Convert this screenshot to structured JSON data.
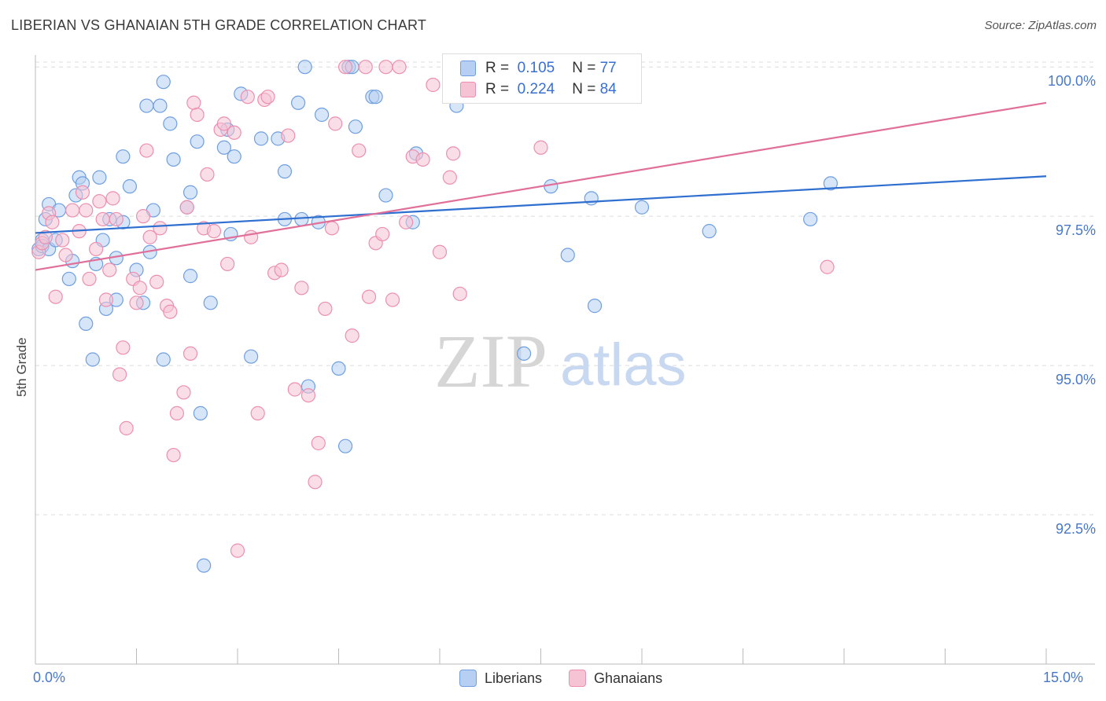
{
  "header": {
    "title": "LIBERIAN VS GHANAIAN 5TH GRADE CORRELATION CHART",
    "source": "Source: ZipAtlas.com"
  },
  "watermark": {
    "zip": "ZIP",
    "atlas": "atlas"
  },
  "legend": {
    "r_label": "R =",
    "n_label": "N =",
    "liberians": {
      "r": "0.105",
      "n": "77"
    },
    "ghanaians": {
      "r": "0.224",
      "n": "84"
    }
  },
  "colors": {
    "blue": "#6f9fe0",
    "blue_fill": "#b7cff2",
    "blue_line": "#2f6fd0",
    "pink": "#ec8fb0",
    "pink_fill": "#f6c3d4",
    "pink_line": "#e0709a",
    "axis_text": "#4a78c8",
    "grid": "#dcdcdc"
  },
  "chart_data": {
    "type": "scatter",
    "title": "LIBERIAN VS GHANAIAN 5TH GRADE CORRELATION CHART",
    "xlabel": "",
    "ylabel": "5th Grade",
    "xlim": [
      0,
      15
    ],
    "ylim": [
      90.0,
      100.2
    ],
    "x_tick_labels": [
      "0.0%",
      "15.0%"
    ],
    "y_ticks": [
      92.5,
      95.0,
      97.5,
      100.0
    ],
    "y_tick_labels": [
      "92.5%",
      "95.0%",
      "97.5%",
      "100.0%"
    ],
    "grid": true,
    "legend_position": "top-center",
    "series": [
      {
        "name": "Liberians",
        "color": "#6f9fe0",
        "trend": {
          "x": [
            0,
            15
          ],
          "y": [
            97.22,
            98.17
          ]
        },
        "points": [
          [
            0.05,
            96.95
          ],
          [
            0.1,
            97.1
          ],
          [
            0.1,
            97.0
          ],
          [
            0.15,
            97.45
          ],
          [
            0.2,
            96.95
          ],
          [
            0.2,
            97.7
          ],
          [
            0.3,
            97.1
          ],
          [
            0.35,
            97.6
          ],
          [
            0.5,
            96.45
          ],
          [
            0.55,
            96.75
          ],
          [
            0.6,
            97.85
          ],
          [
            0.65,
            98.15
          ],
          [
            0.7,
            98.05
          ],
          [
            0.75,
            95.7
          ],
          [
            0.85,
            95.1
          ],
          [
            0.9,
            96.7
          ],
          [
            0.95,
            98.15
          ],
          [
            1.0,
            97.1
          ],
          [
            1.05,
            95.95
          ],
          [
            1.1,
            97.45
          ],
          [
            1.2,
            96.1
          ],
          [
            1.2,
            96.8
          ],
          [
            1.3,
            97.4
          ],
          [
            1.3,
            98.5
          ],
          [
            1.4,
            98.0
          ],
          [
            1.5,
            96.6
          ],
          [
            1.6,
            96.05
          ],
          [
            1.65,
            99.35
          ],
          [
            1.7,
            96.9
          ],
          [
            1.75,
            97.6
          ],
          [
            1.85,
            99.35
          ],
          [
            1.9,
            95.1
          ],
          [
            1.9,
            99.75
          ],
          [
            2.0,
            99.05
          ],
          [
            2.05,
            98.45
          ],
          [
            2.25,
            97.65
          ],
          [
            2.3,
            97.9
          ],
          [
            2.3,
            96.5
          ],
          [
            2.4,
            98.75
          ],
          [
            2.45,
            94.2
          ],
          [
            2.5,
            91.65
          ],
          [
            2.6,
            96.05
          ],
          [
            2.8,
            98.65
          ],
          [
            2.85,
            98.95
          ],
          [
            2.9,
            97.2
          ],
          [
            2.95,
            98.5
          ],
          [
            3.05,
            99.55
          ],
          [
            3.2,
            95.15
          ],
          [
            3.35,
            98.8
          ],
          [
            3.6,
            98.8
          ],
          [
            3.7,
            98.25
          ],
          [
            3.7,
            97.45
          ],
          [
            3.9,
            99.4
          ],
          [
            3.95,
            97.45
          ],
          [
            4.0,
            100.0
          ],
          [
            4.05,
            94.65
          ],
          [
            4.2,
            97.4
          ],
          [
            4.25,
            99.2
          ],
          [
            4.5,
            94.95
          ],
          [
            4.6,
            93.65
          ],
          [
            4.65,
            100.0
          ],
          [
            4.7,
            100.0
          ],
          [
            4.75,
            99.0
          ],
          [
            5.0,
            99.5
          ],
          [
            5.05,
            99.5
          ],
          [
            5.2,
            97.85
          ],
          [
            5.6,
            97.4
          ],
          [
            5.65,
            98.55
          ],
          [
            6.25,
            99.35
          ],
          [
            7.25,
            95.2
          ],
          [
            7.65,
            98.0
          ],
          [
            7.9,
            96.85
          ],
          [
            8.25,
            97.8
          ],
          [
            8.3,
            96.0
          ],
          [
            9.0,
            97.65
          ],
          [
            10.0,
            97.25
          ],
          [
            11.5,
            97.45
          ],
          [
            11.8,
            98.05
          ]
        ]
      },
      {
        "name": "Ghanaians",
        "color": "#ec8fb0",
        "trend": {
          "x": [
            0,
            15
          ],
          "y": [
            96.6,
            99.4
          ]
        },
        "points": [
          [
            0.05,
            96.9
          ],
          [
            0.1,
            97.05
          ],
          [
            0.15,
            97.15
          ],
          [
            0.2,
            97.55
          ],
          [
            0.25,
            97.4
          ],
          [
            0.3,
            96.15
          ],
          [
            0.4,
            97.1
          ],
          [
            0.45,
            96.85
          ],
          [
            0.55,
            97.6
          ],
          [
            0.65,
            97.25
          ],
          [
            0.7,
            97.9
          ],
          [
            0.75,
            97.6
          ],
          [
            0.8,
            96.45
          ],
          [
            0.9,
            96.95
          ],
          [
            0.95,
            97.75
          ],
          [
            1.0,
            97.45
          ],
          [
            1.05,
            96.1
          ],
          [
            1.1,
            96.6
          ],
          [
            1.15,
            97.8
          ],
          [
            1.2,
            97.45
          ],
          [
            1.25,
            94.85
          ],
          [
            1.3,
            95.3
          ],
          [
            1.35,
            93.95
          ],
          [
            1.45,
            96.45
          ],
          [
            1.5,
            96.05
          ],
          [
            1.55,
            96.3
          ],
          [
            1.6,
            97.5
          ],
          [
            1.65,
            98.6
          ],
          [
            1.7,
            97.15
          ],
          [
            1.8,
            96.4
          ],
          [
            1.85,
            97.3
          ],
          [
            1.95,
            96.0
          ],
          [
            2.0,
            95.9
          ],
          [
            2.05,
            93.5
          ],
          [
            2.1,
            94.2
          ],
          [
            2.2,
            94.55
          ],
          [
            2.25,
            97.65
          ],
          [
            2.3,
            95.2
          ],
          [
            2.35,
            99.4
          ],
          [
            2.4,
            99.2
          ],
          [
            2.5,
            97.3
          ],
          [
            2.55,
            98.2
          ],
          [
            2.65,
            97.25
          ],
          [
            2.75,
            98.95
          ],
          [
            2.8,
            99.05
          ],
          [
            2.85,
            96.7
          ],
          [
            2.95,
            98.9
          ],
          [
            3.0,
            91.9
          ],
          [
            3.15,
            99.5
          ],
          [
            3.2,
            97.15
          ],
          [
            3.3,
            94.2
          ],
          [
            3.4,
            99.45
          ],
          [
            3.45,
            99.5
          ],
          [
            3.55,
            96.55
          ],
          [
            3.65,
            96.6
          ],
          [
            3.75,
            98.85
          ],
          [
            3.85,
            94.6
          ],
          [
            3.95,
            96.3
          ],
          [
            4.05,
            94.5
          ],
          [
            4.15,
            93.05
          ],
          [
            4.2,
            93.7
          ],
          [
            4.3,
            95.95
          ],
          [
            4.4,
            97.3
          ],
          [
            4.45,
            99.05
          ],
          [
            4.6,
            100.0
          ],
          [
            4.7,
            95.5
          ],
          [
            4.8,
            98.6
          ],
          [
            4.9,
            100.0
          ],
          [
            4.95,
            96.15
          ],
          [
            5.05,
            97.05
          ],
          [
            5.15,
            97.2
          ],
          [
            5.2,
            100.0
          ],
          [
            5.3,
            96.1
          ],
          [
            5.4,
            100.0
          ],
          [
            5.5,
            97.4
          ],
          [
            5.6,
            98.5
          ],
          [
            5.75,
            98.45
          ],
          [
            5.9,
            99.7
          ],
          [
            6.0,
            96.9
          ],
          [
            6.15,
            98.15
          ],
          [
            6.2,
            98.55
          ],
          [
            6.3,
            96.2
          ],
          [
            7.25,
            100.0
          ],
          [
            7.5,
            98.65
          ],
          [
            11.75,
            96.65
          ]
        ]
      }
    ]
  }
}
